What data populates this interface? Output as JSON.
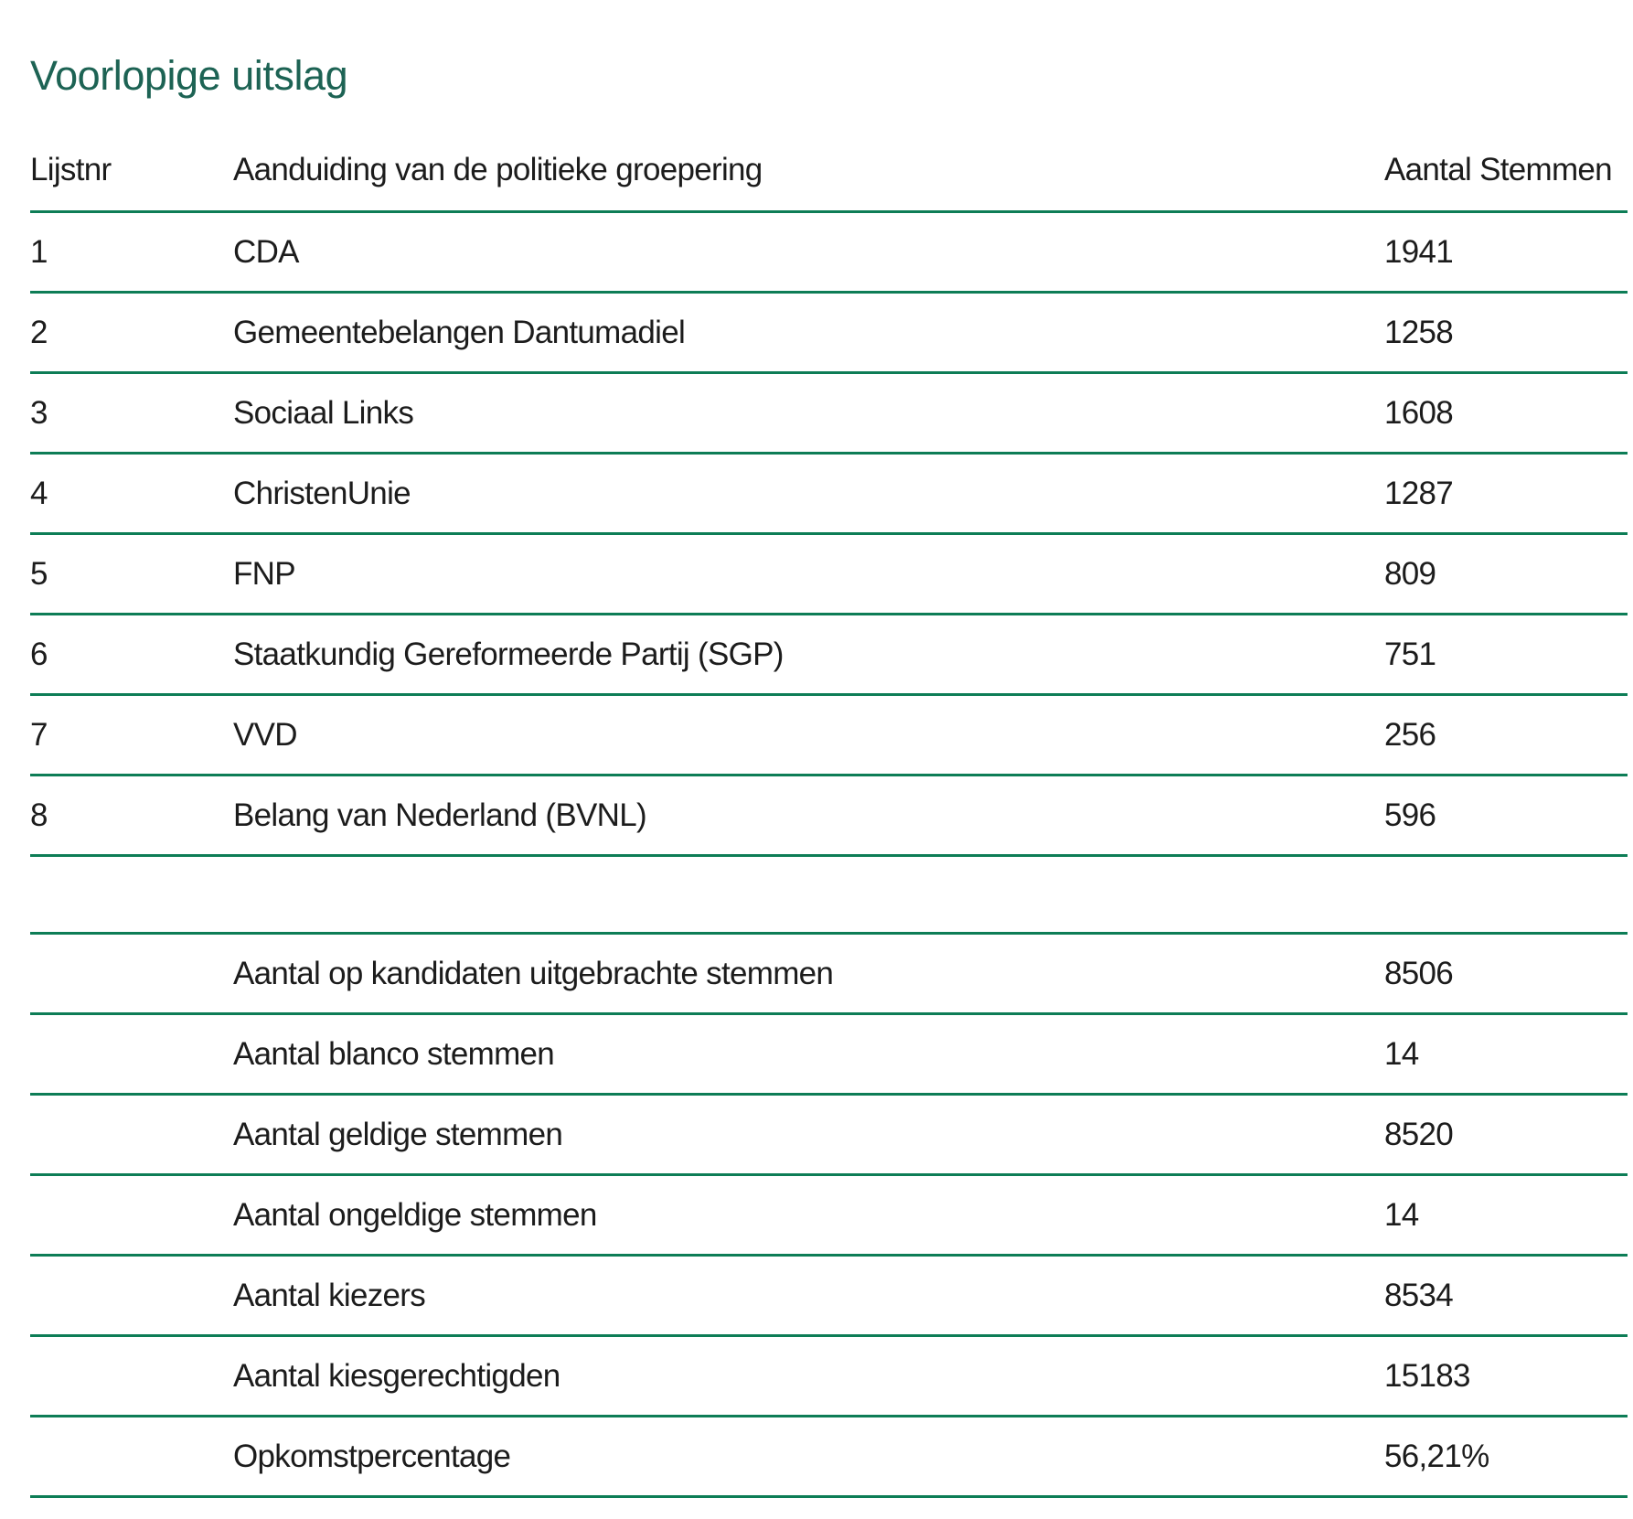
{
  "page": {
    "title": "Voorlopige uitslag"
  },
  "colors": {
    "title": "#1d6354",
    "rule": "#0d7d56",
    "text": "#1c1c1c",
    "background": "#ffffff"
  },
  "results_table": {
    "headers": {
      "lijstnr": "Lijstnr",
      "groepering": "Aanduiding van de politieke groepering",
      "stemmen": "Aantal Stemmen"
    },
    "rows": [
      {
        "lijstnr": "1",
        "groepering": "CDA",
        "stemmen": "1941"
      },
      {
        "lijstnr": "2",
        "groepering": "Gemeentebelangen Dantumadiel",
        "stemmen": "1258"
      },
      {
        "lijstnr": "3",
        "groepering": "Sociaal Links",
        "stemmen": "1608"
      },
      {
        "lijstnr": "4",
        "groepering": "ChristenUnie",
        "stemmen": "1287"
      },
      {
        "lijstnr": "5",
        "groepering": "FNP",
        "stemmen": "809"
      },
      {
        "lijstnr": "6",
        "groepering": "Staatkundig Gereformeerde Partij (SGP)",
        "stemmen": "751"
      },
      {
        "lijstnr": "7",
        "groepering": "VVD",
        "stemmen": "256"
      },
      {
        "lijstnr": "8",
        "groepering": "Belang van Nederland (BVNL)",
        "stemmen": "596"
      }
    ]
  },
  "totals_table": {
    "rows": [
      {
        "label": "Aantal op kandidaten uitgebrachte stemmen",
        "value": "8506"
      },
      {
        "label": "Aantal blanco stemmen",
        "value": "14"
      },
      {
        "label": "Aantal geldige stemmen",
        "value": "8520"
      },
      {
        "label": "Aantal ongeldige stemmen",
        "value": "14"
      },
      {
        "label": "Aantal kiezers",
        "value": "8534"
      },
      {
        "label": "Aantal kiesgerechtigden",
        "value": "15183"
      },
      {
        "label": "Opkomstpercentage",
        "value": "56,21%"
      }
    ]
  }
}
